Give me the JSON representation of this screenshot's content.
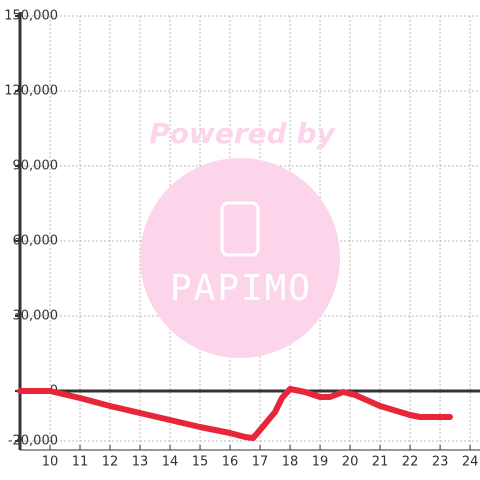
{
  "chart_data": {
    "type": "line",
    "watermark": {
      "title": "Powered by",
      "brand": "PAPIMO"
    },
    "x": [
      9,
      10,
      11,
      12,
      13,
      14,
      15,
      16,
      16.5,
      16.77,
      17,
      17.5,
      17.73,
      18,
      18.5,
      19,
      19.33,
      19.77,
      20.17,
      21,
      22,
      22.33,
      23.33
    ],
    "series": [
      {
        "color": "#e8263a",
        "values": [
          0,
          0,
          -2800,
          -6000,
          -8800,
          -11600,
          -14400,
          -16800,
          -18400,
          -18800,
          -15600,
          -8400,
          -2800,
          800,
          -400,
          -2400,
          -2400,
          -400,
          -1600,
          -6000,
          -9600,
          -10400,
          -10400
        ]
      }
    ],
    "xlim": [
      9,
      24.33
    ],
    "ylim": [
      -23600,
      150000
    ],
    "xticks": [
      10,
      11,
      12,
      13,
      14,
      15,
      16,
      17,
      18,
      19,
      20,
      21,
      22,
      23,
      24
    ],
    "yticks": [
      {
        "value": -20000,
        "label": "-20,000"
      },
      0,
      {
        "value": 30000,
        "label": "30,000"
      },
      {
        "value": 60000,
        "label": "60,000"
      },
      {
        "value": 90000,
        "label": "90,000"
      },
      {
        "value": 120000,
        "label": "120,000"
      },
      {
        "value": 150000,
        "label": "150,000"
      }
    ],
    "grid": true
  }
}
